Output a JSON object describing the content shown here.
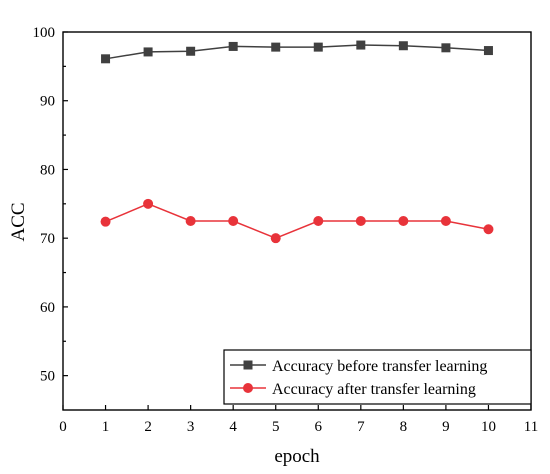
{
  "chart_data": {
    "type": "line",
    "title": "",
    "xlabel": "epoch",
    "ylabel": "ACC",
    "xlim": [
      0,
      11
    ],
    "ylim": [
      45,
      100
    ],
    "xticks": [
      0,
      1,
      2,
      3,
      4,
      5,
      6,
      7,
      8,
      9,
      10,
      11
    ],
    "yticks": [
      50,
      60,
      70,
      80,
      90,
      100
    ],
    "x": [
      1,
      2,
      3,
      4,
      5,
      6,
      7,
      8,
      9,
      10
    ],
    "legend_position": "bottom-right",
    "grid": false,
    "series": [
      {
        "name": "Accuracy before transfer learning",
        "color": "#404040",
        "marker": "square",
        "values": [
          96.1,
          97.1,
          97.2,
          97.9,
          97.8,
          97.8,
          98.1,
          98.0,
          97.7,
          97.3
        ]
      },
      {
        "name": "Accuracy after transfer learning",
        "color": "#e8333a",
        "marker": "circle",
        "values": [
          72.4,
          75.0,
          72.5,
          72.5,
          70.0,
          72.5,
          72.5,
          72.5,
          72.5,
          71.3
        ]
      }
    ]
  }
}
